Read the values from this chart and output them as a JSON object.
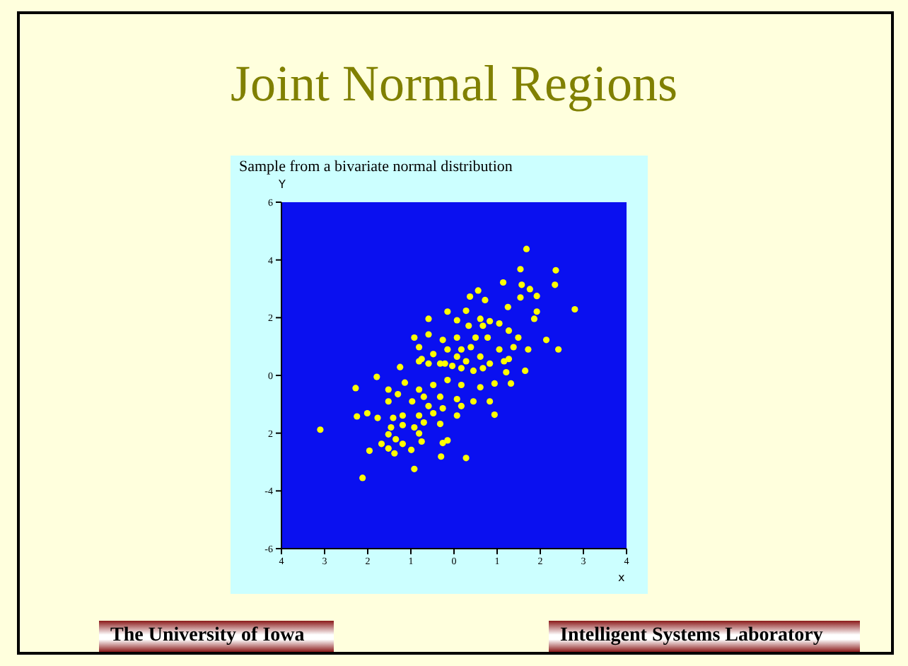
{
  "chart_data": {
    "type": "scatter",
    "title": "Joint Normal Regions",
    "subtitle": "Sample from a bivariate normal distribution",
    "xlabel": "x",
    "ylabel": "Y",
    "annotations": [
      "The University of Iowa",
      "Intelligent Systems Laboratory"
    ],
    "xlim": [
      -4,
      4
    ],
    "ylim": [
      -6,
      6
    ],
    "xticks": [
      {
        "value": -4,
        "label": "4"
      },
      {
        "value": -3,
        "label": "3"
      },
      {
        "value": -2,
        "label": "2"
      },
      {
        "value": -1,
        "label": "1"
      },
      0,
      1,
      2,
      3,
      4
    ],
    "yticks": [
      -6,
      -4,
      {
        "value": -2,
        "label": "2"
      },
      0,
      2,
      4,
      6
    ],
    "grid": false,
    "legend": false,
    "marker": "circle",
    "series": [
      {
        "color": "#ffff00",
        "x": [
          1.68,
          1.54,
          2.36,
          2.34,
          1.14,
          1.57,
          1.76,
          0.56,
          0.37,
          1.92,
          1.54,
          1.25,
          2.8,
          1.92,
          0.72,
          -0.15,
          0.28,
          -0.59,
          0.07,
          1.86,
          0.83,
          0.61,
          1.05,
          0.34,
          1.27,
          0.67,
          -0.92,
          -0.59,
          1.49,
          2.14,
          0.5,
          0.78,
          0.07,
          -0.26,
          2.42,
          1.38,
          1.72,
          -0.81,
          0.17,
          0.39,
          -0.15,
          1.05,
          -0.48,
          -0.75,
          0.07,
          0.61,
          1.27,
          0.28,
          -0.32,
          -1.25,
          -0.59,
          0.83,
          -0.04,
          1.21,
          0.45,
          1.65,
          -1.79,
          -0.81,
          -0.21,
          0.17,
          0.67,
          1.16,
          -2.28,
          -1.52,
          -1.14,
          -0.81,
          -0.48,
          -0.15,
          0.17,
          0.61,
          0.94,
          1.32,
          -1.52,
          -0.97,
          -0.7,
          -0.32,
          0.07,
          0.45,
          0.83,
          -1.3,
          -0.59,
          -0.26,
          0.17,
          0.94,
          -2.25,
          -2.01,
          -1.77,
          -1.41,
          -1.19,
          -0.81,
          -0.48,
          0.07,
          -3.1,
          -1.46,
          -1.19,
          -0.92,
          -0.7,
          -0.32,
          -1.52,
          -0.81,
          -1.35,
          -1.68,
          -1.52,
          -1.19,
          -0.75,
          -0.26,
          -0.15,
          -1.96,
          -1.38,
          -0.99,
          -0.3,
          0.28,
          -0.92,
          -2.12
        ],
        "values": [
          4.38,
          3.68,
          3.64,
          3.14,
          3.22,
          3.14,
          2.99,
          2.94,
          2.73,
          2.75,
          2.7,
          2.37,
          2.29,
          2.21,
          2.61,
          2.21,
          2.24,
          1.96,
          1.91,
          1.96,
          1.88,
          1.96,
          1.8,
          1.72,
          1.55,
          1.72,
          1.31,
          1.42,
          1.31,
          1.23,
          1.31,
          1.31,
          1.31,
          1.23,
          0.9,
          0.98,
          0.9,
          0.98,
          0.9,
          0.98,
          0.9,
          0.9,
          0.74,
          0.57,
          0.65,
          0.65,
          0.57,
          0.49,
          0.41,
          0.29,
          0.41,
          0.41,
          0.33,
          0.11,
          0.16,
          0.16,
          -0.05,
          0.49,
          0.41,
          0.25,
          0.25,
          0.49,
          -0.44,
          -0.49,
          -0.25,
          -0.49,
          -0.33,
          -0.16,
          -0.33,
          -0.41,
          -0.28,
          -0.28,
          -0.9,
          -0.9,
          -0.74,
          -0.74,
          -0.82,
          -0.9,
          -0.9,
          -0.65,
          -1.06,
          -1.14,
          -1.06,
          -1.36,
          -1.42,
          -1.31,
          -1.47,
          -1.47,
          -1.39,
          -1.39,
          -1.31,
          -1.39,
          -1.88,
          -1.8,
          -1.72,
          -1.8,
          -1.63,
          -1.68,
          -2.04,
          -2.01,
          -2.21,
          -2.37,
          -2.53,
          -2.37,
          -2.29,
          -2.34,
          -2.25,
          -2.61,
          -2.7,
          -2.58,
          -2.81,
          -2.86,
          -3.24,
          -3.55
        ]
      }
    ]
  }
}
